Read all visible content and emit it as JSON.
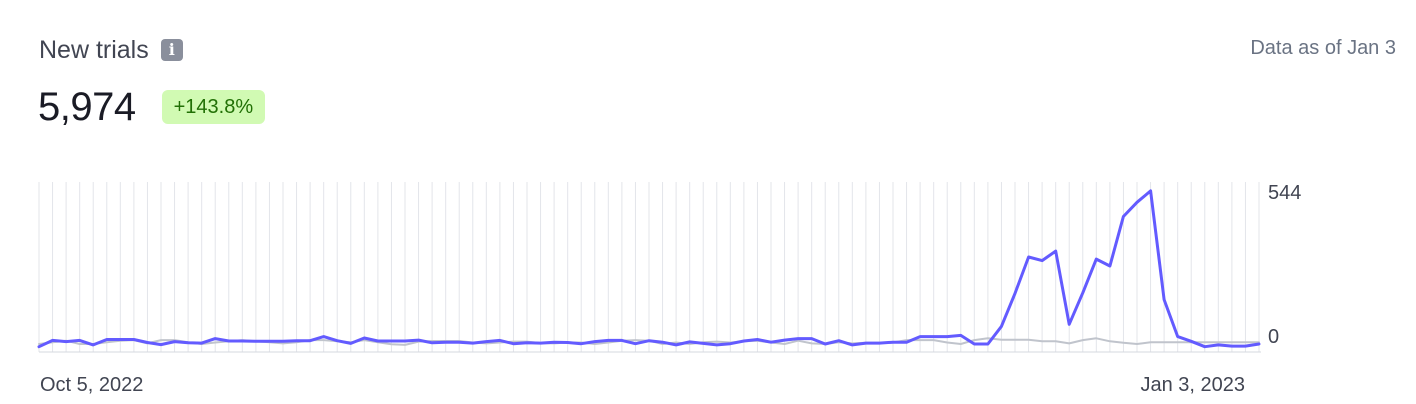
{
  "header": {
    "title": "New trials",
    "info_icon": "info-icon",
    "as_of": "Data as of Jan 3"
  },
  "summary": {
    "value": "5,974",
    "change": "+143.8%",
    "change_color": "#217005",
    "change_bg": "#d1fab3"
  },
  "chart_data": {
    "type": "line",
    "x_start_label": "Oct 5, 2022",
    "x_end_label": "Jan 3, 2023",
    "y_ticks": [
      "544",
      "0"
    ],
    "ylim": [
      0,
      544
    ],
    "grid": "vertical",
    "series": [
      {
        "color": "#635bff",
        "values": [
          -9,
          12,
          8,
          12,
          -3,
          15,
          15,
          15,
          5,
          -2,
          8,
          4,
          3,
          18,
          10,
          10,
          9,
          9,
          9,
          11,
          11,
          25,
          11,
          2,
          20,
          10,
          10,
          10,
          13,
          4,
          6,
          6,
          3,
          8,
          12,
          1,
          4,
          3,
          6,
          5,
          1,
          8,
          12,
          12,
          1,
          11,
          6,
          -3,
          7,
          2,
          -3,
          1,
          10,
          15,
          6,
          13,
          18,
          18,
          0,
          11,
          -3,
          3,
          3,
          6,
          6,
          25,
          25,
          25,
          29,
          0,
          0,
          59,
          170,
          292,
          280,
          312,
          66,
          172,
          285,
          262,
          428,
          476,
          514,
          149,
          25,
          9,
          -9,
          -3,
          -7,
          -7,
          0
        ]
      },
      {
        "color": "#c0c4cc",
        "values": [
          0,
          6,
          11,
          0,
          0,
          6,
          11,
          13,
          2,
          13,
          13,
          6,
          0,
          5,
          9,
          13,
          9,
          6,
          2,
          6,
          13,
          13,
          9,
          6,
          13,
          6,
          -1,
          -3,
          8,
          10,
          10,
          10,
          5,
          2,
          5,
          8,
          8,
          3,
          2,
          5,
          5,
          0,
          5,
          11,
          13,
          11,
          0,
          5,
          0,
          6,
          8,
          5,
          9,
          11,
          5,
          0,
          11,
          2,
          0,
          6,
          2,
          4,
          4,
          5,
          13,
          13,
          13,
          5,
          0,
          13,
          19,
          14,
          14,
          14,
          9,
          9,
          2,
          13,
          19,
          9,
          4,
          0,
          6,
          6,
          6,
          6,
          6,
          6,
          6,
          6,
          6
        ]
      }
    ]
  }
}
